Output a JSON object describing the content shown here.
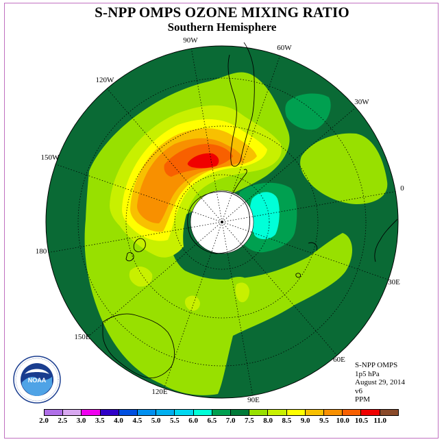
{
  "header": {
    "title": "S-NPP OMPS OZONE MIXING RATIO",
    "subtitle": "Southern Hemisphere"
  },
  "map": {
    "projection": "south-polar-stereographic",
    "longitude_labels": [
      "90W",
      "60W",
      "30W",
      "0",
      "30E",
      "60E",
      "90E",
      "120E",
      "150E",
      "180",
      "150W",
      "120W"
    ],
    "ocean_color": "#0a6a35",
    "polar_mask_color": "#ffffff",
    "maximum_region": "South Pacific near Antarctic Peninsula",
    "minimum_region": "around South Pole"
  },
  "info": {
    "instrument": "S-NPP OMPS",
    "level": "1p5 hPa",
    "date": "August 29, 2014",
    "version": "v6",
    "units": "PPM"
  },
  "logo": {
    "text": "NOAA",
    "alt": "NOAA logo"
  },
  "colorbar": {
    "ticks": [
      "2.0",
      "2.5",
      "3.0",
      "3.5",
      "4.0",
      "4.5",
      "5.0",
      "5.5",
      "6.0",
      "6.5",
      "7.0",
      "7.5",
      "8.0",
      "8.5",
      "9.0",
      "9.5",
      "10.0",
      "10.5",
      "11.0"
    ],
    "colors": [
      "#b070e8",
      "#d8a8f0",
      "#f000f0",
      "#3000c8",
      "#0050e0",
      "#0090f0",
      "#00b0f0",
      "#00d8f0",
      "#00ffd8",
      "#00a050",
      "#007a38",
      "#98e000",
      "#c8f000",
      "#ffff00",
      "#f8c000",
      "#f89000",
      "#f86000",
      "#f00000",
      "#8a4a2a"
    ]
  }
}
